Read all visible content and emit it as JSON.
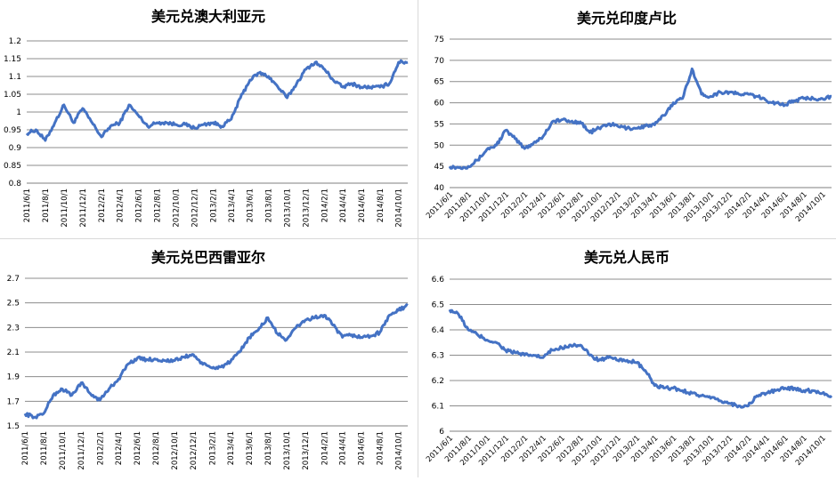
{
  "chart_data": [
    {
      "type": "line",
      "title": "美元兑澳大利亚元",
      "xlabel": "",
      "ylabel": "",
      "ylim": [
        0.8,
        1.2
      ],
      "yticks": [
        "0.8",
        "0.85",
        "0.9",
        "0.95",
        "1",
        "1.05",
        "1.1",
        "1.15",
        "1.2"
      ],
      "x_tick_labels": [
        "2011/6/1",
        "2011/8/1",
        "2011/10/1",
        "2011/12/1",
        "2012/2/1",
        "2012/4/1",
        "2012/6/1",
        "2012/8/1",
        "2012/10/1",
        "2012/12/1",
        "2013/2/1",
        "2013/4/1",
        "2013/6/1",
        "2013/8/1",
        "2013/10/1",
        "2013/12/1",
        "2014/2/1",
        "2014/4/1",
        "2014/6/1",
        "2014/8/1",
        "2014/10/1"
      ],
      "x_label_rotation": -90,
      "grid": "horizontal",
      "line_color": "#4472C4",
      "x": [
        "2011-06-01",
        "2011-07-01",
        "2011-08-01",
        "2011-09-01",
        "2011-10-01",
        "2011-11-01",
        "2011-12-01",
        "2012-01-01",
        "2012-02-01",
        "2012-03-01",
        "2012-04-01",
        "2012-05-01",
        "2012-06-01",
        "2012-07-01",
        "2012-08-01",
        "2012-09-01",
        "2012-10-01",
        "2012-11-01",
        "2012-12-01",
        "2013-01-01",
        "2013-02-01",
        "2013-03-01",
        "2013-04-01",
        "2013-05-01",
        "2013-06-01",
        "2013-07-01",
        "2013-08-01",
        "2013-09-01",
        "2013-10-01",
        "2013-11-01",
        "2013-12-01",
        "2014-01-01",
        "2014-02-01",
        "2014-03-01",
        "2014-04-01",
        "2014-05-01",
        "2014-06-01",
        "2014-07-01",
        "2014-08-01",
        "2014-09-01",
        "2014-10-01",
        "2014-10-31"
      ],
      "values": [
        0.94,
        0.95,
        0.92,
        0.97,
        1.02,
        0.97,
        1.01,
        0.97,
        0.93,
        0.96,
        0.97,
        1.02,
        0.99,
        0.96,
        0.97,
        0.97,
        0.965,
        0.965,
        0.955,
        0.965,
        0.97,
        0.96,
        0.98,
        1.04,
        1.09,
        1.11,
        1.1,
        1.07,
        1.04,
        1.08,
        1.12,
        1.14,
        1.12,
        1.09,
        1.07,
        1.08,
        1.07,
        1.07,
        1.07,
        1.08,
        1.14,
        1.14
      ]
    },
    {
      "type": "line",
      "title": "美元兑印度卢比",
      "xlabel": "",
      "ylabel": "",
      "ylim": [
        40,
        75
      ],
      "yticks": [
        "40",
        "45",
        "50",
        "55",
        "60",
        "65",
        "70",
        "75"
      ],
      "x_tick_labels": [
        "2011/6/1",
        "2011/8/1",
        "2011/10/1",
        "2011/12/1",
        "2012/2/1",
        "2012/4/1",
        "2012/6/1",
        "2012/8/1",
        "2012/10/1",
        "2012/12/1",
        "2013/2/1",
        "2013/4/1",
        "2013/6/1",
        "2013/8/1",
        "2013/10/1",
        "2013/12/1",
        "2014/2/1",
        "2014/4/1",
        "2014/6/1",
        "2014/8/1",
        "2014/10/1"
      ],
      "x_label_rotation": -45,
      "grid": "horizontal",
      "line_color": "#4472C4",
      "x": [
        "2011-06-01",
        "2011-07-01",
        "2011-08-01",
        "2011-09-01",
        "2011-10-01",
        "2011-11-01",
        "2011-12-01",
        "2012-01-01",
        "2012-02-01",
        "2012-03-01",
        "2012-04-01",
        "2012-05-01",
        "2012-06-01",
        "2012-07-01",
        "2012-08-01",
        "2012-09-01",
        "2012-10-01",
        "2012-11-01",
        "2012-12-01",
        "2013-01-01",
        "2013-02-01",
        "2013-03-01",
        "2013-04-01",
        "2013-05-01",
        "2013-06-01",
        "2013-07-01",
        "2013-08-01",
        "2013-09-01",
        "2013-10-01",
        "2013-11-01",
        "2013-12-01",
        "2014-01-01",
        "2014-02-01",
        "2014-03-01",
        "2014-04-01",
        "2014-05-01",
        "2014-06-01",
        "2014-07-01",
        "2014-08-01",
        "2014-09-01",
        "2014-10-01",
        "2014-10-31"
      ],
      "values": [
        45,
        44.7,
        45,
        46.5,
        49,
        50,
        53.5,
        51.5,
        49.2,
        50.5,
        52,
        55.5,
        56,
        55.5,
        55.5,
        53,
        54,
        55,
        54.5,
        54,
        54,
        54.5,
        54.8,
        57,
        60,
        61,
        68,
        62,
        61.5,
        62.5,
        62.5,
        62,
        62,
        61.5,
        60.5,
        60,
        59.5,
        60.5,
        61,
        61,
        61,
        61.5
      ]
    },
    {
      "type": "line",
      "title": "美元兑巴西雷亚尔",
      "xlabel": "",
      "ylabel": "",
      "ylim": [
        1.5,
        2.7
      ],
      "yticks": [
        "1.5",
        "1.7",
        "1.9",
        "2.1",
        "2.3",
        "2.5",
        "2.7"
      ],
      "x_tick_labels": [
        "2011/6/1",
        "2011/8/1",
        "2011/10/1",
        "2011/12/1",
        "2012/2/1",
        "2012/4/1",
        "2012/6/1",
        "2012/8/1",
        "2012/10/1",
        "2012/12/1",
        "2013/2/1",
        "2013/4/1",
        "2013/6/1",
        "2013/8/1",
        "2013/10/1",
        "2013/12/1",
        "2014/2/1",
        "2014/4/1",
        "2014/6/1",
        "2014/8/1",
        "2014/10/1"
      ],
      "x_label_rotation": -90,
      "grid": "horizontal",
      "line_color": "#4472C4",
      "x": [
        "2011-06-01",
        "2011-07-01",
        "2011-08-01",
        "2011-09-01",
        "2011-10-01",
        "2011-11-01",
        "2011-12-01",
        "2012-01-01",
        "2012-02-01",
        "2012-03-01",
        "2012-04-01",
        "2012-05-01",
        "2012-06-01",
        "2012-07-01",
        "2012-08-01",
        "2012-09-01",
        "2012-10-01",
        "2012-11-01",
        "2012-12-01",
        "2013-01-01",
        "2013-02-01",
        "2013-03-01",
        "2013-04-01",
        "2013-05-01",
        "2013-06-01",
        "2013-07-01",
        "2013-08-01",
        "2013-09-01",
        "2013-10-01",
        "2013-11-01",
        "2013-12-01",
        "2014-01-01",
        "2014-02-01",
        "2014-03-01",
        "2014-04-01",
        "2014-05-01",
        "2014-06-01",
        "2014-07-01",
        "2014-08-01",
        "2014-09-01",
        "2014-10-01",
        "2014-10-31"
      ],
      "values": [
        1.6,
        1.57,
        1.6,
        1.75,
        1.8,
        1.75,
        1.85,
        1.76,
        1.71,
        1.8,
        1.88,
        2.0,
        2.05,
        2.04,
        2.04,
        2.03,
        2.03,
        2.06,
        2.08,
        2.0,
        1.97,
        1.98,
        2.02,
        2.1,
        2.22,
        2.28,
        2.38,
        2.25,
        2.2,
        2.3,
        2.36,
        2.38,
        2.4,
        2.32,
        2.22,
        2.24,
        2.22,
        2.23,
        2.26,
        2.4,
        2.44,
        2.48
      ]
    },
    {
      "type": "line",
      "title": "美元兑人民币",
      "xlabel": "",
      "ylabel": "",
      "ylim": [
        6.0,
        6.6
      ],
      "yticks": [
        "6",
        "6.1",
        "6.2",
        "6.3",
        "6.4",
        "6.5",
        "6.6"
      ],
      "x_tick_labels": [
        "2011/6/1",
        "2011/8/1",
        "2011/10/1",
        "2011/12/1",
        "2012/2/1",
        "2012/4/1",
        "2012/6/1",
        "2012/8/1",
        "2012/10/1",
        "2012/12/1",
        "2013/2/1",
        "2013/4/1",
        "2013/6/1",
        "2013/8/1",
        "2013/10/1",
        "2013/12/1",
        "2014/2/1",
        "2014/4/1",
        "2014/6/1",
        "2014/8/1",
        "2014/10/1"
      ],
      "x_label_rotation": -45,
      "grid": "horizontal",
      "line_color": "#4472C4",
      "x": [
        "2011-06-01",
        "2011-07-01",
        "2011-08-01",
        "2011-09-01",
        "2011-10-01",
        "2011-11-01",
        "2011-12-01",
        "2012-01-01",
        "2012-02-01",
        "2012-03-01",
        "2012-04-01",
        "2012-05-01",
        "2012-06-01",
        "2012-07-01",
        "2012-08-01",
        "2012-09-01",
        "2012-10-01",
        "2012-11-01",
        "2012-12-01",
        "2013-01-01",
        "2013-02-01",
        "2013-03-01",
        "2013-04-01",
        "2013-05-01",
        "2013-06-01",
        "2013-07-01",
        "2013-08-01",
        "2013-09-01",
        "2013-10-01",
        "2013-11-01",
        "2013-12-01",
        "2014-01-01",
        "2014-02-01",
        "2014-03-01",
        "2014-04-01",
        "2014-05-01",
        "2014-06-01",
        "2014-07-01",
        "2014-08-01",
        "2014-09-01",
        "2014-10-01",
        "2014-10-31"
      ],
      "values": [
        6.48,
        6.46,
        6.4,
        6.38,
        6.36,
        6.35,
        6.32,
        6.31,
        6.3,
        6.3,
        6.29,
        6.32,
        6.33,
        6.34,
        6.34,
        6.3,
        6.28,
        6.29,
        6.28,
        6.28,
        6.27,
        6.24,
        6.18,
        6.17,
        6.17,
        6.16,
        6.15,
        6.14,
        6.13,
        6.12,
        6.11,
        6.1,
        6.1,
        6.14,
        6.15,
        6.16,
        6.17,
        6.17,
        6.16,
        6.16,
        6.15,
        6.14
      ]
    }
  ]
}
